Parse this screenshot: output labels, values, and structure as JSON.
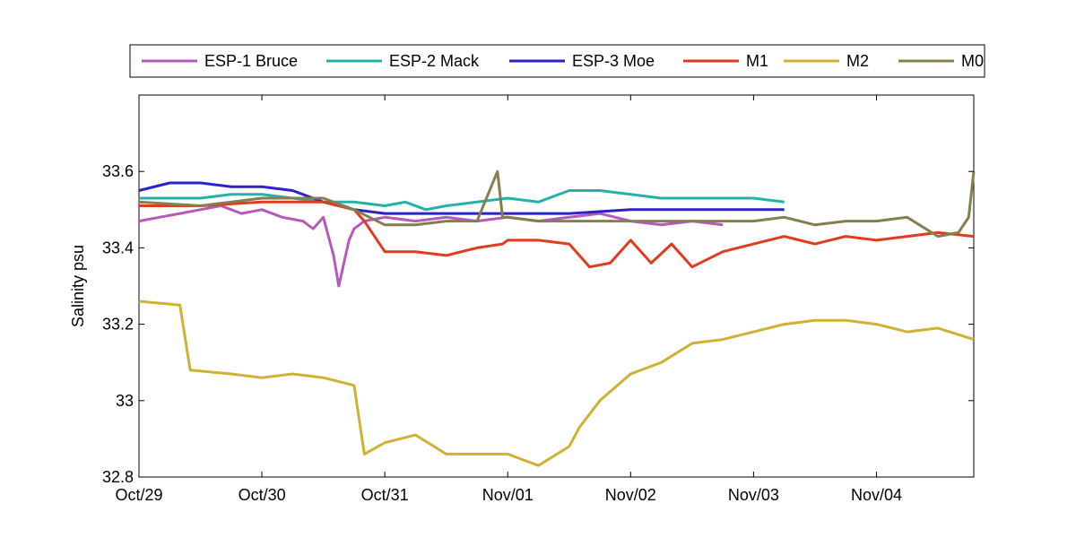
{
  "chart_data": {
    "type": "line",
    "title": "",
    "xlabel": "",
    "ylabel": "Salinity psu",
    "xlim": [
      "2012-10-29",
      "2012-11-04T19:00"
    ],
    "ylim": [
      32.8,
      33.8
    ],
    "x_ticks": [
      "Oct/29",
      "Oct/30",
      "Oct/31",
      "Nov/01",
      "Nov/02",
      "Nov/03",
      "Nov/04"
    ],
    "y_ticks": [
      {
        "value": 32.8,
        "label": "32.8"
      },
      {
        "value": 33.0,
        "label": "33"
      },
      {
        "value": 33.2,
        "label": "33.2"
      },
      {
        "value": 33.4,
        "label": "33.4"
      },
      {
        "value": 33.6,
        "label": "33.6"
      }
    ],
    "grid": false,
    "legend_position": "top",
    "series": [
      {
        "name": "ESP-1 Bruce",
        "color": "#b55ab8",
        "x": [
          "2012-10-29T00:00",
          "2012-10-29T04:00",
          "2012-10-29T08:00",
          "2012-10-29T12:00",
          "2012-10-29T16:00",
          "2012-10-29T20:00",
          "2012-10-30T00:00",
          "2012-10-30T04:00",
          "2012-10-30T08:00",
          "2012-10-30T10:00",
          "2012-10-30T12:00",
          "2012-10-30T13:00",
          "2012-10-30T14:00",
          "2012-10-30T15:00",
          "2012-10-30T16:00",
          "2012-10-30T17:00",
          "2012-10-30T18:00",
          "2012-10-30T20:00",
          "2012-10-31T00:00",
          "2012-10-31T06:00",
          "2012-10-31T12:00",
          "2012-10-31T18:00",
          "2012-11-01T00:00",
          "2012-11-01T06:00",
          "2012-11-01T12:00",
          "2012-11-01T18:00",
          "2012-11-02T00:00",
          "2012-11-02T06:00",
          "2012-11-02T12:00",
          "2012-11-02T18:00"
        ],
        "y": [
          33.47,
          33.48,
          33.49,
          33.5,
          33.51,
          33.49,
          33.5,
          33.48,
          33.47,
          33.45,
          33.48,
          33.43,
          33.38,
          33.3,
          33.36,
          33.42,
          33.45,
          33.47,
          33.48,
          33.47,
          33.48,
          33.47,
          33.48,
          33.47,
          33.48,
          33.49,
          33.47,
          33.46,
          33.47,
          33.46
        ]
      },
      {
        "name": "ESP-2 Mack",
        "color": "#26b0a8",
        "x": [
          "2012-10-29T00:00",
          "2012-10-29T06:00",
          "2012-10-29T12:00",
          "2012-10-29T18:00",
          "2012-10-30T00:00",
          "2012-10-30T06:00",
          "2012-10-30T12:00",
          "2012-10-30T18:00",
          "2012-10-31T00:00",
          "2012-10-31T04:00",
          "2012-10-31T08:00",
          "2012-10-31T12:00",
          "2012-10-31T18:00",
          "2012-11-01T00:00",
          "2012-11-01T06:00",
          "2012-11-01T12:00",
          "2012-11-01T18:00",
          "2012-11-02T00:00",
          "2012-11-02T06:00",
          "2012-11-02T12:00",
          "2012-11-02T18:00",
          "2012-11-03T00:00",
          "2012-11-03T06:00"
        ],
        "y": [
          33.53,
          33.53,
          33.53,
          33.54,
          33.54,
          33.53,
          33.52,
          33.52,
          33.51,
          33.52,
          33.5,
          33.51,
          33.52,
          33.53,
          33.52,
          33.55,
          33.55,
          33.54,
          33.53,
          33.53,
          33.53,
          33.53,
          33.52
        ]
      },
      {
        "name": "ESP-3 Moe",
        "color": "#2d22c8",
        "x": [
          "2012-10-29T00:00",
          "2012-10-29T06:00",
          "2012-10-29T12:00",
          "2012-10-29T18:00",
          "2012-10-30T00:00",
          "2012-10-30T06:00",
          "2012-10-30T12:00",
          "2012-10-30T18:00",
          "2012-10-31T00:00",
          "2012-10-31T12:00",
          "2012-11-01T00:00",
          "2012-11-01T12:00",
          "2012-11-02T00:00",
          "2012-11-02T12:00",
          "2012-11-03T00:00",
          "2012-11-03T06:00"
        ],
        "y": [
          33.55,
          33.57,
          33.57,
          33.56,
          33.56,
          33.55,
          33.52,
          33.5,
          33.49,
          33.49,
          33.49,
          33.49,
          33.5,
          33.5,
          33.5,
          33.5
        ]
      },
      {
        "name": "M1",
        "color": "#e13b1e",
        "x": [
          "2012-10-29T00:00",
          "2012-10-29T12:00",
          "2012-10-30T00:00",
          "2012-10-30T12:00",
          "2012-10-30T18:00",
          "2012-10-30T20:00",
          "2012-10-30T22:00",
          "2012-10-31T00:00",
          "2012-10-31T06:00",
          "2012-10-31T12:00",
          "2012-10-31T18:00",
          "2012-10-31T23:00",
          "2012-11-01T00:00",
          "2012-11-01T06:00",
          "2012-11-01T12:00",
          "2012-11-01T16:00",
          "2012-11-01T20:00",
          "2012-11-02T00:00",
          "2012-11-02T04:00",
          "2012-11-02T08:00",
          "2012-11-02T12:00",
          "2012-11-02T18:00",
          "2012-11-03T00:00",
          "2012-11-03T06:00",
          "2012-11-03T12:00",
          "2012-11-03T18:00",
          "2012-11-04T00:00",
          "2012-11-04T06:00",
          "2012-11-04T12:00",
          "2012-11-04T19:00"
        ],
        "y": [
          33.51,
          33.51,
          33.52,
          33.52,
          33.5,
          33.47,
          33.43,
          33.39,
          33.39,
          33.38,
          33.4,
          33.41,
          33.42,
          33.42,
          33.41,
          33.35,
          33.36,
          33.42,
          33.36,
          33.41,
          33.35,
          33.39,
          33.41,
          33.43,
          33.41,
          33.43,
          33.42,
          33.43,
          33.44,
          33.43
        ]
      },
      {
        "name": "M2",
        "color": "#cfb234",
        "x": [
          "2012-10-29T00:00",
          "2012-10-29T08:00",
          "2012-10-29T10:00",
          "2012-10-29T18:00",
          "2012-10-30T00:00",
          "2012-10-30T06:00",
          "2012-10-30T12:00",
          "2012-10-30T18:00",
          "2012-10-30T20:00",
          "2012-10-31T00:00",
          "2012-10-31T06:00",
          "2012-10-31T12:00",
          "2012-10-31T18:00",
          "2012-11-01T00:00",
          "2012-11-01T06:00",
          "2012-11-01T12:00",
          "2012-11-01T14:00",
          "2012-11-01T18:00",
          "2012-11-02T00:00",
          "2012-11-02T06:00",
          "2012-11-02T12:00",
          "2012-11-02T18:00",
          "2012-11-03T00:00",
          "2012-11-03T06:00",
          "2012-11-03T12:00",
          "2012-11-03T18:00",
          "2012-11-04T00:00",
          "2012-11-04T06:00",
          "2012-11-04T12:00",
          "2012-11-04T19:00"
        ],
        "y": [
          33.26,
          33.25,
          33.08,
          33.07,
          33.06,
          33.07,
          33.06,
          33.04,
          32.86,
          32.89,
          32.91,
          32.86,
          32.86,
          32.86,
          32.83,
          32.88,
          32.93,
          33.0,
          33.07,
          33.1,
          33.15,
          33.16,
          33.18,
          33.2,
          33.21,
          33.21,
          33.2,
          33.18,
          33.19,
          33.16
        ]
      },
      {
        "name": "M0",
        "color": "#857f4f",
        "x": [
          "2012-10-29T00:00",
          "2012-10-29T12:00",
          "2012-10-30T00:00",
          "2012-10-30T12:00",
          "2012-10-30T18:00",
          "2012-10-31T00:00",
          "2012-10-31T06:00",
          "2012-10-31T12:00",
          "2012-10-31T18:00",
          "2012-10-31T22:00",
          "2012-10-31T23:00",
          "2012-11-01T00:00",
          "2012-11-01T06:00",
          "2012-11-01T12:00",
          "2012-11-01T18:00",
          "2012-11-02T00:00",
          "2012-11-02T12:00",
          "2012-11-02T18:00",
          "2012-11-03T00:00",
          "2012-11-03T06:00",
          "2012-11-03T12:00",
          "2012-11-03T18:00",
          "2012-11-04T00:00",
          "2012-11-04T06:00",
          "2012-11-04T12:00",
          "2012-11-04T16:00",
          "2012-11-04T18:00",
          "2012-11-04T19:00"
        ],
        "y": [
          33.52,
          33.51,
          33.53,
          33.53,
          33.5,
          33.46,
          33.46,
          33.47,
          33.47,
          33.6,
          33.48,
          33.48,
          33.47,
          33.47,
          33.47,
          33.47,
          33.47,
          33.47,
          33.47,
          33.48,
          33.46,
          33.47,
          33.47,
          33.48,
          33.43,
          33.44,
          33.48,
          33.6
        ]
      }
    ]
  }
}
